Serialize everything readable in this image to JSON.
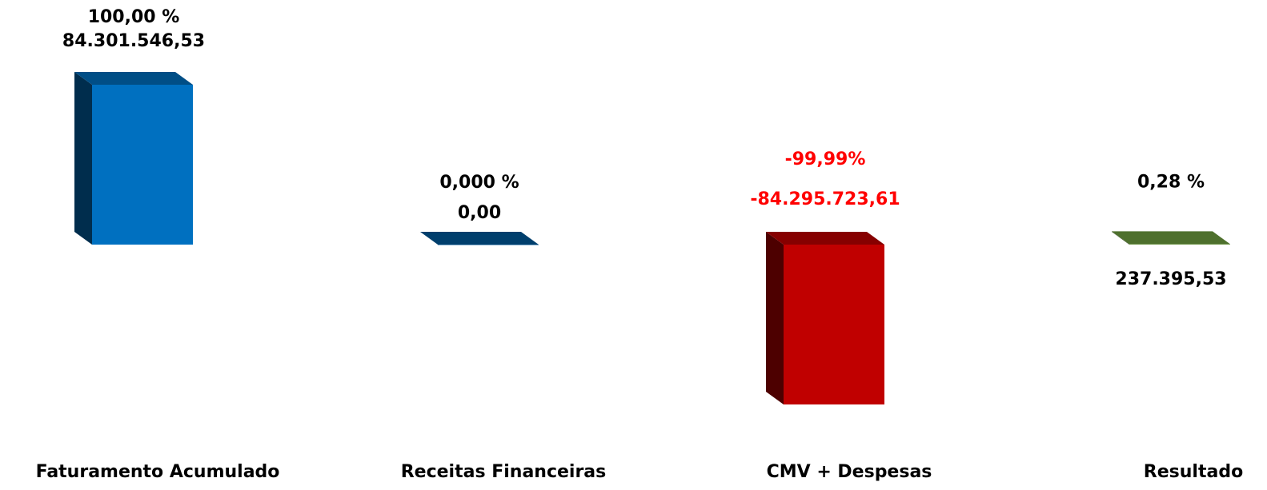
{
  "chart_data": {
    "type": "bar3d",
    "categories": [
      "Faturamento Acumulado",
      "Receitas Financeiras",
      "CMV + Despesas",
      "Resultado"
    ],
    "values": [
      84301546.53,
      0,
      -84295723.61,
      237395.53
    ],
    "value_labels": [
      "84.301.546,53",
      "0,00",
      "-84.295.723,61",
      "237.395,53"
    ],
    "percentages": [
      100,
      0,
      -99.99,
      0.28
    ],
    "percentage_labels": [
      "100,00 %",
      "0,000 %",
      "-99,99%",
      "0,28 %"
    ],
    "colors": [
      "#0070c0",
      "#005a9c",
      "#c00000",
      "#70a040"
    ],
    "label_color": "#000000",
    "negative_label_color": "#ff0000"
  }
}
